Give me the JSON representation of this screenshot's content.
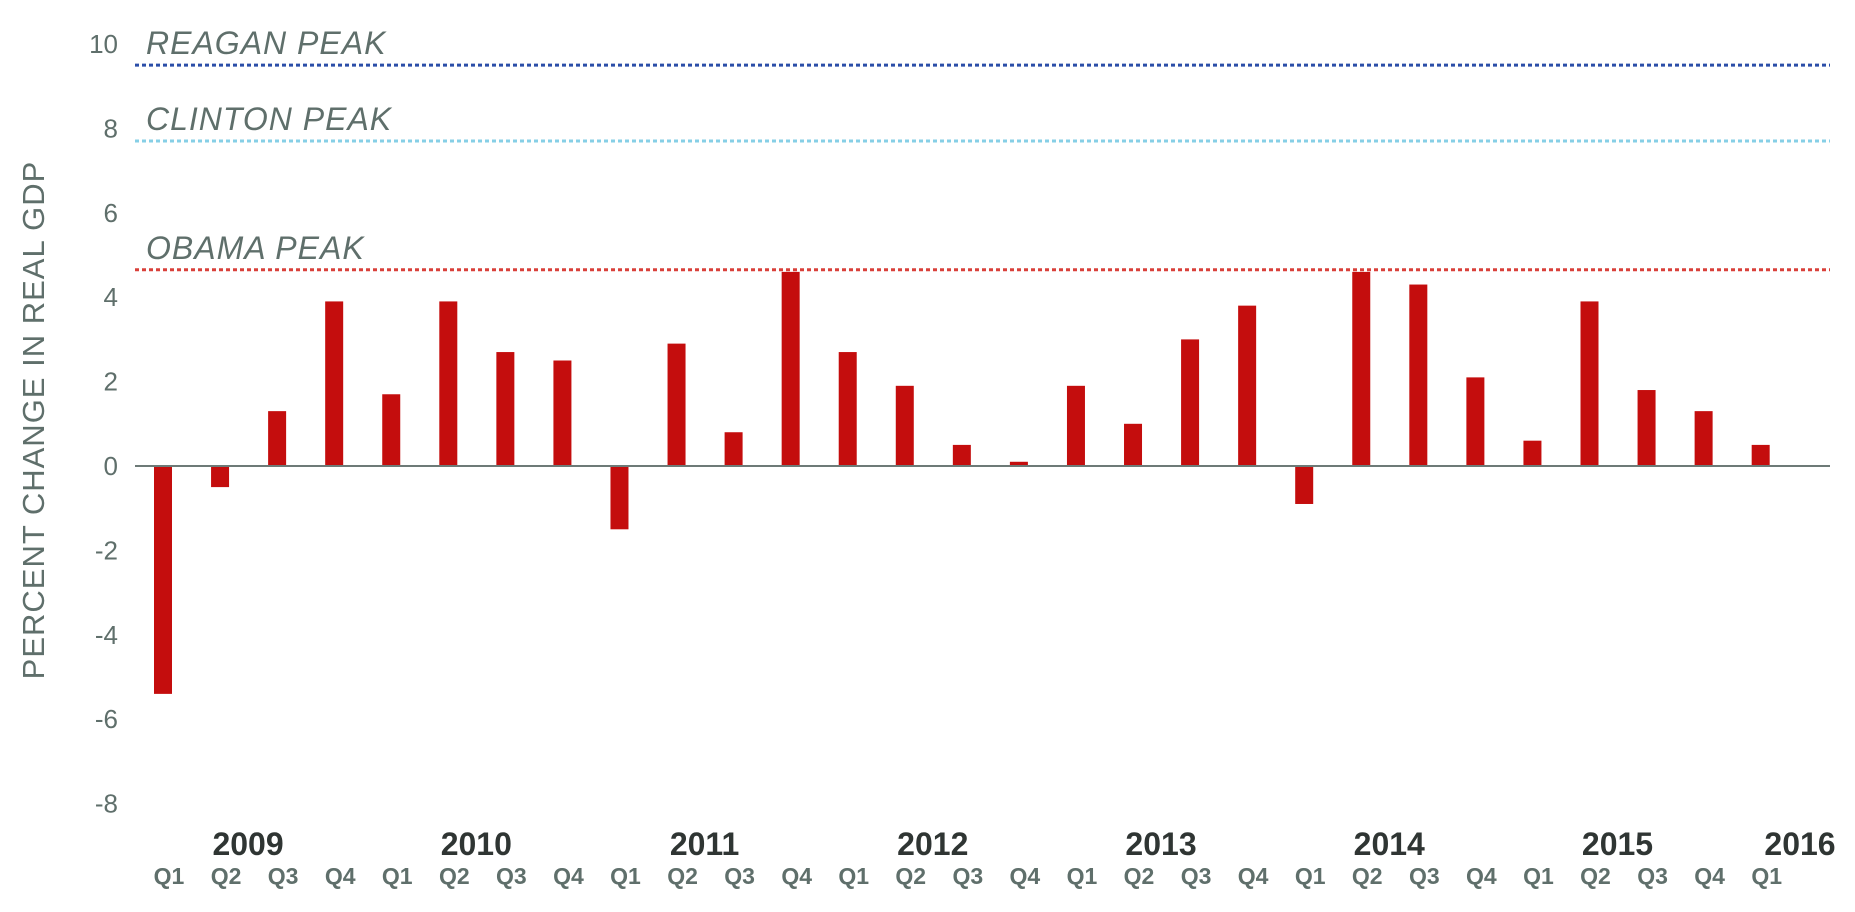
{
  "chart_data": {
    "type": "bar",
    "title": "",
    "xlabel": "",
    "ylabel": "PERCENT CHANGE IN REAL GDP",
    "ylim": [
      -8,
      10
    ],
    "yticks": [
      "10",
      "8",
      "6",
      "4",
      "2",
      "0",
      "-2",
      "-4",
      "-6",
      "-8"
    ],
    "ytick_values": [
      10,
      8,
      6,
      4,
      2,
      0,
      -2,
      -4,
      -6,
      -8
    ],
    "grid": false,
    "bar_color": "#c40d0d",
    "categories": [
      "Q1",
      "Q2",
      "Q3",
      "Q4",
      "Q1",
      "Q2",
      "Q3",
      "Q4",
      "Q1",
      "Q2",
      "Q3",
      "Q4",
      "Q1",
      "Q2",
      "Q3",
      "Q4",
      "Q1",
      "Q2",
      "Q3",
      "Q4",
      "Q1",
      "Q2",
      "Q3",
      "Q4",
      "Q1",
      "Q2",
      "Q3",
      "Q4",
      "Q1"
    ],
    "values": [
      -5.4,
      -0.5,
      1.3,
      3.9,
      1.7,
      3.9,
      2.7,
      2.5,
      -1.5,
      2.9,
      0.8,
      4.6,
      2.7,
      1.9,
      0.5,
      0.1,
      1.9,
      1.0,
      3.0,
      3.8,
      -0.9,
      4.6,
      4.3,
      2.1,
      0.6,
      3.9,
      1.8,
      1.3,
      0.5
    ],
    "years": [
      {
        "label": "2009",
        "index": 1
      },
      {
        "label": "2010",
        "index": 5
      },
      {
        "label": "2011",
        "index": 9
      },
      {
        "label": "2012",
        "index": 13
      },
      {
        "label": "2013",
        "index": 17
      },
      {
        "label": "2014",
        "index": 21
      },
      {
        "label": "2015",
        "index": 25
      },
      {
        "label": "2016",
        "index": 28
      }
    ],
    "reference_lines": [
      {
        "label": "REAGAN PEAK",
        "value": 9.5,
        "color": "#2b4ea8"
      },
      {
        "label": "CLINTON PEAK",
        "value": 7.7,
        "color": "#86cfe6"
      },
      {
        "label": "OBAMA PEAK",
        "value": 4.65,
        "color": "#d9403a"
      }
    ]
  }
}
